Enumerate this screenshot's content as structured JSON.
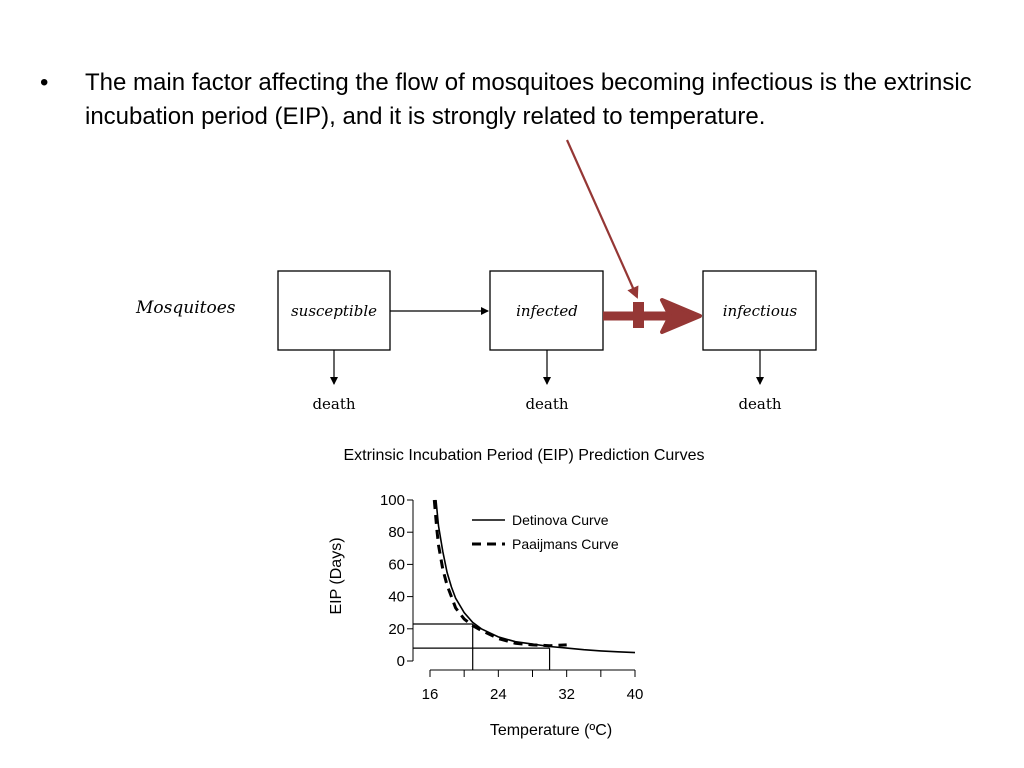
{
  "slide": {
    "bullet_text": "The main factor affecting the flow of mosquitoes becoming infectious is the extrinsic incubation period (EIP), and it is strongly related to temperature.",
    "bullet_symbol": "•"
  },
  "flow": {
    "row_label": "Mosquitoes",
    "boxes": [
      "susceptible",
      "infected",
      "infectious"
    ],
    "exit_label": "death",
    "highlight_color": "#953735"
  },
  "chart_data": {
    "type": "line",
    "title": "Extrinsic Incubation Period (EIP) Prediction Curves",
    "xlabel": "Temperature (ºC)",
    "ylabel": "EIP (Days)",
    "xlim": [
      16,
      40
    ],
    "ylim": [
      0,
      100
    ],
    "x_ticks": [
      16,
      24,
      32,
      40
    ],
    "y_ticks": [
      0,
      20,
      40,
      60,
      80,
      100
    ],
    "legend_position": "top-right",
    "series": [
      {
        "name": "Detinova Curve",
        "style": "solid",
        "x": [
          16.7,
          17.0,
          17.5,
          18.0,
          18.5,
          19.0,
          20.0,
          21.0,
          22.0,
          24.0,
          26.0,
          28.0,
          30.0,
          32.0,
          34.0,
          36.0,
          38.0,
          40.0
        ],
        "y": [
          100,
          84,
          68,
          55,
          46,
          39,
          30,
          24,
          20,
          15,
          12,
          10.5,
          9,
          8,
          7,
          6.3,
          5.7,
          5.2
        ]
      },
      {
        "name": "Paaijmans Curve",
        "style": "dashed",
        "x": [
          16.5,
          16.8,
          17.0,
          17.5,
          18.0,
          18.5,
          19.0,
          20.0,
          21.0,
          22.0,
          24.0,
          26.0,
          28.0,
          30.0,
          32.0
        ],
        "y": [
          100,
          82,
          72,
          57,
          47,
          40,
          33,
          26,
          22,
          19,
          14,
          11,
          10,
          9.5,
          10
        ]
      }
    ],
    "reference_lines": [
      {
        "x": 21,
        "y": 23
      },
      {
        "x": 30,
        "y": 8
      }
    ]
  }
}
